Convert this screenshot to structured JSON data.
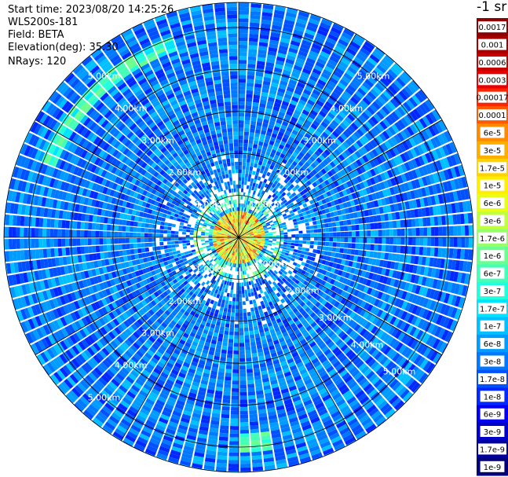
{
  "header": {
    "start_time": "Start time: 2023/08/20 14:25:26",
    "instrument": "WLS200s-181",
    "field": "Field: BETA",
    "elevation": "Elevation(deg): 35.30",
    "nrays": "NRays: 120"
  },
  "colorbar": {
    "title": "-1 sr",
    "labels": [
      "0.0017",
      "0.001",
      "0.0006",
      "0.0003",
      "0.00017",
      "0.0001",
      "6e-5",
      "3e-5",
      "1.7e-5",
      "1e-5",
      "6e-6",
      "3e-6",
      "1.7e-6",
      "1e-6",
      "6e-7",
      "3e-7",
      "1.7e-7",
      "1e-7",
      "6e-8",
      "3e-8",
      "1.7e-8",
      "1e-8",
      "6e-9",
      "3e-9",
      "1.7e-9",
      "1e-9"
    ],
    "colors": [
      "#8b0000",
      "#a40000",
      "#c40000",
      "#e80000",
      "#ff2400",
      "#ff5a00",
      "#ff8a00",
      "#ffae00",
      "#ffd200",
      "#ffee00",
      "#e6ff1a",
      "#c0ff3f",
      "#96ff69",
      "#6cff8f",
      "#46ffb6",
      "#22ffdc",
      "#00e4ff",
      "#00c0ff",
      "#009cff",
      "#0078ff",
      "#0050ff",
      "#0028ff",
      "#0000f0",
      "#0000c8",
      "#0000a0",
      "#000078"
    ]
  },
  "chart_data": {
    "type": "polar_ppi",
    "field": "BETA",
    "units": "sr^-1",
    "nrays": 120,
    "elevation_deg": 35.3,
    "range_ring_labels": [
      "1.00km",
      "2.00km",
      "3.00km",
      "4.00km",
      "5.00km"
    ],
    "range_rings_km": [
      1,
      2,
      3,
      4,
      5
    ],
    "max_range_km": 5.6,
    "colorbar_ticks": [
      "0.0017",
      "0.001",
      "0.0006",
      "0.0003",
      "0.00017",
      "0.0001",
      "6e-5",
      "3e-5",
      "1.7e-5",
      "1e-5",
      "6e-6",
      "3e-6",
      "1.7e-6",
      "1e-6",
      "6e-7",
      "3e-7",
      "1.7e-7",
      "1e-7",
      "6e-8",
      "3e-8",
      "1.7e-8",
      "1e-8",
      "6e-9",
      "3e-9",
      "1.7e-9",
      "1e-9"
    ],
    "typical_value_far_range": "3e-8",
    "typical_value_near_range": "1e-5",
    "core_range_km": 0.6
  }
}
